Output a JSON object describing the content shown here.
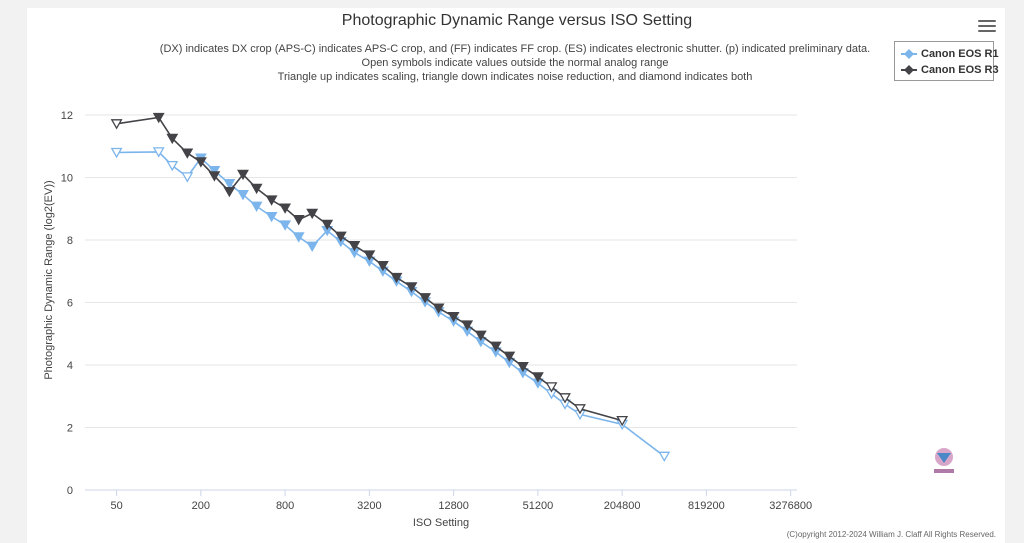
{
  "chart_data": {
    "type": "line",
    "title": "Photographic Dynamic Range versus ISO Setting",
    "subtitle": [
      "(DX) indicates DX crop (APS-C) indicates APS-C crop, and (FF) indicates FF crop. (ES) indicates electronic shutter. (p) indicated preliminary data.",
      "Open symbols indicate values outside the normal analog range",
      "Triangle up indicates scaling, triangle down indicates noise reduction, and diamond indicates both"
    ],
    "xlabel": "ISO Setting",
    "ylabel": "Photographic Dynamic Range (log2(EV))",
    "x_scale": "log",
    "x_ticks": [
      50,
      200,
      800,
      3200,
      12800,
      51200,
      204800,
      819200,
      3276800
    ],
    "ylim": [
      0,
      12
    ],
    "y_ticks": [
      0,
      2,
      4,
      6,
      8,
      10,
      12
    ],
    "grid": true,
    "legend": "top-right",
    "copyright": "(C)opyright 2012-2024 William J. Claff All Rights Reserved.",
    "series": [
      {
        "name": "Canon EOS R1",
        "color": "#7cb5ec",
        "points": [
          {
            "x": 50,
            "y": 10.8,
            "open": true
          },
          {
            "x": 100,
            "y": 10.82,
            "open": true
          },
          {
            "x": 125,
            "y": 10.38,
            "open": true
          },
          {
            "x": 160,
            "y": 10.02,
            "open": true
          },
          {
            "x": 200,
            "y": 10.62,
            "open": false
          },
          {
            "x": 250,
            "y": 10.22,
            "open": false
          },
          {
            "x": 320,
            "y": 9.8,
            "open": false
          },
          {
            "x": 400,
            "y": 9.45,
            "open": false
          },
          {
            "x": 500,
            "y": 9.08,
            "open": false
          },
          {
            "x": 640,
            "y": 8.75,
            "open": false
          },
          {
            "x": 800,
            "y": 8.48,
            "open": false
          },
          {
            "x": 1000,
            "y": 8.1,
            "open": false
          },
          {
            "x": 1250,
            "y": 7.8,
            "open": false
          },
          {
            "x": 1600,
            "y": 8.3,
            "open": false
          },
          {
            "x": 2000,
            "y": 7.95,
            "open": false
          },
          {
            "x": 2500,
            "y": 7.6,
            "open": false
          },
          {
            "x": 3200,
            "y": 7.32,
            "open": false
          },
          {
            "x": 4000,
            "y": 7.0,
            "open": false
          },
          {
            "x": 5000,
            "y": 6.68,
            "open": false
          },
          {
            "x": 6400,
            "y": 6.35,
            "open": false
          },
          {
            "x": 8000,
            "y": 6.02,
            "open": false
          },
          {
            "x": 10000,
            "y": 5.7,
            "open": false
          },
          {
            "x": 12800,
            "y": 5.4,
            "open": false
          },
          {
            "x": 16000,
            "y": 5.08,
            "open": false
          },
          {
            "x": 20000,
            "y": 4.75,
            "open": false
          },
          {
            "x": 25600,
            "y": 4.42,
            "open": false
          },
          {
            "x": 32000,
            "y": 4.08,
            "open": false
          },
          {
            "x": 40000,
            "y": 3.75,
            "open": false
          },
          {
            "x": 51200,
            "y": 3.42,
            "open": false
          },
          {
            "x": 64000,
            "y": 3.08,
            "open": true
          },
          {
            "x": 80000,
            "y": 2.75,
            "open": true
          },
          {
            "x": 102400,
            "y": 2.42,
            "open": true
          },
          {
            "x": 204800,
            "y": 2.1,
            "open": true
          },
          {
            "x": 409600,
            "y": 1.08,
            "open": true
          }
        ]
      },
      {
        "name": "Canon EOS R3",
        "color": "#434348",
        "points": [
          {
            "x": 50,
            "y": 11.72,
            "open": true
          },
          {
            "x": 100,
            "y": 11.92,
            "open": false
          },
          {
            "x": 125,
            "y": 11.25,
            "open": false
          },
          {
            "x": 160,
            "y": 10.78,
            "open": false
          },
          {
            "x": 200,
            "y": 10.5,
            "open": false
          },
          {
            "x": 250,
            "y": 10.05,
            "open": false
          },
          {
            "x": 320,
            "y": 9.55,
            "open": false
          },
          {
            "x": 400,
            "y": 10.1,
            "open": false
          },
          {
            "x": 500,
            "y": 9.65,
            "open": false
          },
          {
            "x": 640,
            "y": 9.28,
            "open": false
          },
          {
            "x": 800,
            "y": 9.02,
            "open": false
          },
          {
            "x": 1000,
            "y": 8.65,
            "open": false
          },
          {
            "x": 1250,
            "y": 8.85,
            "open": false
          },
          {
            "x": 1600,
            "y": 8.5,
            "open": false
          },
          {
            "x": 2000,
            "y": 8.12,
            "open": false
          },
          {
            "x": 2500,
            "y": 7.82,
            "open": false
          },
          {
            "x": 3200,
            "y": 7.52,
            "open": false
          },
          {
            "x": 4000,
            "y": 7.18,
            "open": false
          },
          {
            "x": 5000,
            "y": 6.8,
            "open": false
          },
          {
            "x": 6400,
            "y": 6.5,
            "open": false
          },
          {
            "x": 8000,
            "y": 6.15,
            "open": false
          },
          {
            "x": 10000,
            "y": 5.82,
            "open": false
          },
          {
            "x": 12800,
            "y": 5.55,
            "open": false
          },
          {
            "x": 16000,
            "y": 5.28,
            "open": false
          },
          {
            "x": 20000,
            "y": 4.95,
            "open": false
          },
          {
            "x": 25600,
            "y": 4.6,
            "open": false
          },
          {
            "x": 32000,
            "y": 4.28,
            "open": false
          },
          {
            "x": 40000,
            "y": 3.95,
            "open": false
          },
          {
            "x": 51200,
            "y": 3.62,
            "open": false
          },
          {
            "x": 64000,
            "y": 3.3,
            "open": true
          },
          {
            "x": 80000,
            "y": 2.95,
            "open": true
          },
          {
            "x": 102400,
            "y": 2.6,
            "open": true
          },
          {
            "x": 204800,
            "y": 2.22,
            "open": true
          }
        ]
      }
    ]
  }
}
